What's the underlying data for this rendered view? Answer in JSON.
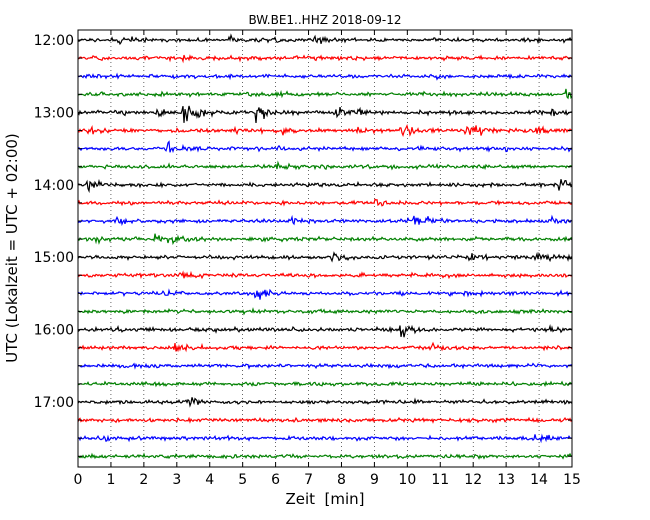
{
  "chart_data": {
    "type": "line",
    "title": "BW.BE1..HHZ 2018-09-12",
    "xlabel": "Zeit  [min]",
    "ylabel": "UTC (Lokalzeit = UTC + 02:00)",
    "xlim": [
      0,
      15
    ],
    "x_ticks": [
      "0",
      "1",
      "2",
      "3",
      "4",
      "5",
      "6",
      "7",
      "8",
      "9",
      "10",
      "11",
      "12",
      "13",
      "14",
      "15"
    ],
    "y_tick_labels": [
      "12:00",
      "13:00",
      "14:00",
      "15:00",
      "16:00",
      "17:00"
    ],
    "grid": true,
    "trace_interval_min": 15,
    "trace_colors": [
      "#000000",
      "#ff0000",
      "#0000ff",
      "#008000"
    ],
    "traces": [
      {
        "start": "12:00",
        "events": [
          [
            1.2,
            1.0
          ],
          [
            1.5,
            0.8
          ],
          [
            4.6,
            0.7
          ],
          [
            6.0,
            0.8
          ],
          [
            7.2,
            1.0
          ]
        ]
      },
      {
        "start": "12:15",
        "events": [
          [
            3.2,
            0.8
          ],
          [
            6.3,
            0.6
          ],
          [
            12.2,
            0.6
          ]
        ]
      },
      {
        "start": "12:30",
        "events": [
          [
            10.9,
            0.4
          ]
        ]
      },
      {
        "start": "12:45",
        "events": [
          [
            14.8,
            1.6
          ]
        ]
      },
      {
        "start": "13:00",
        "events": [
          [
            1.4,
            0.6
          ],
          [
            2.4,
            1.0
          ],
          [
            3.2,
            2.5
          ],
          [
            3.6,
            1.6
          ],
          [
            5.4,
            2.2
          ],
          [
            7.8,
            1.7
          ],
          [
            8.5,
            1.2
          ],
          [
            11.3,
            0.6
          ],
          [
            13.9,
            0.7
          ],
          [
            14.4,
            0.9
          ]
        ]
      },
      {
        "start": "13:15",
        "events": [
          [
            0.3,
            1.0
          ],
          [
            4.8,
            0.6
          ],
          [
            6.2,
            0.5
          ],
          [
            8.5,
            0.8
          ],
          [
            9.8,
            2.0
          ],
          [
            11.8,
            2.5
          ],
          [
            13.9,
            1.6
          ]
        ]
      },
      {
        "start": "13:30",
        "events": [
          [
            2.7,
            1.4
          ],
          [
            3.2,
            0.8
          ],
          [
            6.0,
            0.5
          ],
          [
            13.0,
            0.9
          ],
          [
            14.8,
            0.6
          ]
        ]
      },
      {
        "start": "13:45",
        "events": [
          [
            4.5,
            0.5
          ],
          [
            6.0,
            1.3
          ],
          [
            10.7,
            0.7
          ]
        ]
      },
      {
        "start": "14:00",
        "events": [
          [
            0.3,
            1.6
          ],
          [
            14.6,
            2.0
          ]
        ]
      },
      {
        "start": "14:15",
        "events": [
          [
            9.0,
            1.3
          ]
        ]
      },
      {
        "start": "14:30",
        "events": [
          [
            1.2,
            1.0
          ],
          [
            6.5,
            1.0
          ],
          [
            10.2,
            1.3
          ],
          [
            10.6,
            1.5
          ],
          [
            14.4,
            0.7
          ]
        ]
      },
      {
        "start": "14:45",
        "events": [
          [
            0.5,
            0.8
          ],
          [
            2.3,
            1.0
          ],
          [
            2.7,
            1.5
          ],
          [
            3.2,
            0.8
          ],
          [
            5.7,
            0.5
          ]
        ]
      },
      {
        "start": "15:00",
        "events": [
          [
            7.7,
            1.4
          ],
          [
            11.9,
            1.1
          ],
          [
            13.9,
            1.7
          ]
        ]
      },
      {
        "start": "15:15",
        "events": [
          [
            3.2,
            0.5
          ],
          [
            11.3,
            0.4
          ]
        ]
      },
      {
        "start": "15:30",
        "events": [
          [
            2.6,
            0.6
          ],
          [
            5.4,
            1.1
          ],
          [
            5.7,
            0.6
          ]
        ]
      },
      {
        "start": "15:45",
        "events": [
          [
            7.2,
            0.4
          ]
        ]
      },
      {
        "start": "16:00",
        "events": [
          [
            1.2,
            0.6
          ],
          [
            9.8,
            2.0
          ],
          [
            14.3,
            0.9
          ]
        ]
      },
      {
        "start": "16:15",
        "events": [
          [
            2.9,
            1.3
          ],
          [
            10.7,
            1.6
          ]
        ]
      },
      {
        "start": "16:30",
        "events": []
      },
      {
        "start": "16:45",
        "events": []
      },
      {
        "start": "17:00",
        "events": [
          [
            3.3,
            1.6
          ]
        ]
      },
      {
        "start": "17:15",
        "events": []
      },
      {
        "start": "17:30",
        "events": [
          [
            0.6,
            1.0
          ],
          [
            8.5,
            0.6
          ],
          [
            13.9,
            1.5
          ]
        ]
      },
      {
        "start": "17:45",
        "events": []
      }
    ]
  }
}
